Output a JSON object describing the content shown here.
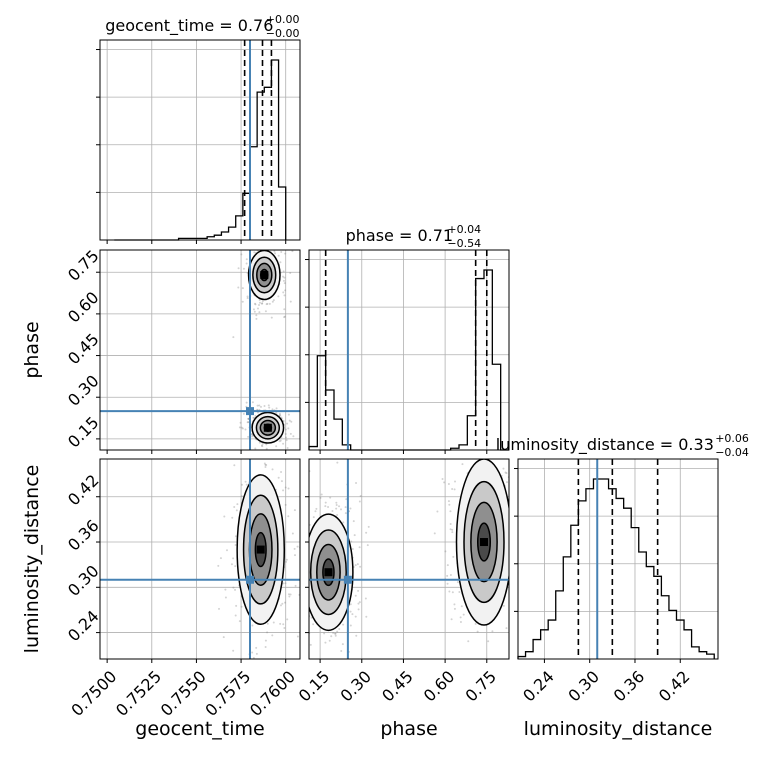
{
  "colors": {
    "truth": "#4682b4",
    "hist": "#000000",
    "grid": "#b0b0b0",
    "quantile": "#000000",
    "contour_fill": [
      "#f2f2f2",
      "#c9c9c9",
      "#8f8f8f",
      "#4a4a4a"
    ],
    "scatter": "#808080"
  },
  "chart_data": {
    "type": "corner",
    "parameters": [
      "geocent_time",
      "phase",
      "luminosity_distance"
    ],
    "axis_labels": [
      "geocent_time",
      "phase",
      "luminosity_distance"
    ],
    "truths": {
      "geocent_time": 0.758,
      "phase": 0.25,
      "luminosity_distance": 0.31
    },
    "ranges": {
      "geocent_time": [
        0.7496,
        0.7608
      ],
      "phase": [
        0.11,
        0.83
      ],
      "luminosity_distance": [
        0.205,
        0.47
      ]
    },
    "ticks": {
      "geocent_time": [
        "0.7500",
        "0.7525",
        "0.7550",
        "0.7575",
        "0.7600"
      ],
      "phase": [
        "0.15",
        "0.30",
        "0.45",
        "0.60",
        "0.75"
      ],
      "luminosity_distance": [
        "0.24",
        "0.30",
        "0.36",
        "0.42"
      ]
    },
    "tick_values": {
      "geocent_time": [
        0.75,
        0.7525,
        0.755,
        0.7575,
        0.76
      ],
      "phase": [
        0.15,
        0.3,
        0.45,
        0.6,
        0.75
      ],
      "luminosity_distance": [
        0.24,
        0.3,
        0.36,
        0.42
      ]
    },
    "titles": [
      {
        "param": "geocent_time",
        "name": "geocent_time",
        "median": "0.76",
        "plus": "+0.00",
        "minus": "−0.00"
      },
      {
        "param": "phase",
        "name": "phase",
        "median": "0.71",
        "plus": "+0.04",
        "minus": "−0.54"
      },
      {
        "param": "luminosity_distance",
        "name": "luminosity_distance",
        "median": "0.33",
        "plus": "+0.06",
        "minus": "−0.04"
      }
    ],
    "quantiles": {
      "geocent_time": [
        0.7577,
        0.7587,
        0.7592
      ],
      "phase": [
        0.17,
        0.71,
        0.75
      ],
      "luminosity_distance": [
        0.285,
        0.33,
        0.39
      ]
    },
    "hist_1d": {
      "geocent_time": {
        "edges": [
          0.7504,
          0.7508,
          0.7512,
          0.7516,
          0.752,
          0.7524,
          0.7528,
          0.7532,
          0.7536,
          0.754,
          0.7544,
          0.7548,
          0.7552,
          0.7556,
          0.756,
          0.7564,
          0.7568,
          0.7572,
          0.7576,
          0.758,
          0.7584,
          0.7588,
          0.7592,
          0.7596,
          0.76
        ],
        "counts": [
          0,
          0,
          0,
          0,
          0,
          0,
          0,
          0,
          0,
          1,
          1,
          1,
          1,
          2,
          3,
          5,
          8,
          15,
          29,
          58,
          92,
          95,
          112,
          33
        ]
      },
      "phase": {
        "edges": [
          0.11,
          0.14,
          0.17,
          0.2,
          0.23,
          0.26,
          0.29,
          0.32,
          0.35,
          0.38,
          0.41,
          0.44,
          0.47,
          0.5,
          0.53,
          0.56,
          0.59,
          0.62,
          0.65,
          0.68,
          0.71,
          0.74,
          0.77,
          0.8,
          0.83
        ],
        "counts": [
          2,
          55,
          35,
          18,
          3,
          0,
          0,
          0,
          0,
          0,
          0,
          0,
          0,
          0,
          0,
          0,
          0,
          1,
          3,
          20,
          100,
          105,
          50,
          0
        ]
      },
      "luminosity_distance": {
        "edges": [
          0.205,
          0.215,
          0.225,
          0.235,
          0.245,
          0.255,
          0.265,
          0.275,
          0.285,
          0.295,
          0.305,
          0.315,
          0.325,
          0.335,
          0.345,
          0.355,
          0.365,
          0.375,
          0.385,
          0.395,
          0.405,
          0.415,
          0.425,
          0.435,
          0.445,
          0.455,
          0.465
        ],
        "counts": [
          1,
          3,
          8,
          12,
          16,
          28,
          42,
          55,
          65,
          70,
          74,
          74,
          70,
          66,
          62,
          54,
          44,
          38,
          34,
          26,
          20,
          16,
          12,
          5,
          3,
          2
        ]
      }
    },
    "hist_2d": [
      {
        "x": "geocent_time",
        "y": "phase",
        "peaks": [
          {
            "x": 0.7588,
            "y": 0.74,
            "sx": 0.0004,
            "sy": 0.04
          },
          {
            "x": 0.759,
            "y": 0.19,
            "sx": 0.0004,
            "sy": 0.025
          }
        ]
      },
      {
        "x": "geocent_time",
        "y": "luminosity_distance",
        "peaks": [
          {
            "x": 0.7586,
            "y": 0.35,
            "sx": 0.0006,
            "sy": 0.045
          }
        ]
      },
      {
        "x": "phase",
        "y": "luminosity_distance",
        "peaks": [
          {
            "x": 0.18,
            "y": 0.32,
            "sx": 0.04,
            "sy": 0.035
          },
          {
            "x": 0.74,
            "y": 0.36,
            "sx": 0.045,
            "sy": 0.05
          }
        ]
      }
    ],
    "grid": true
  }
}
